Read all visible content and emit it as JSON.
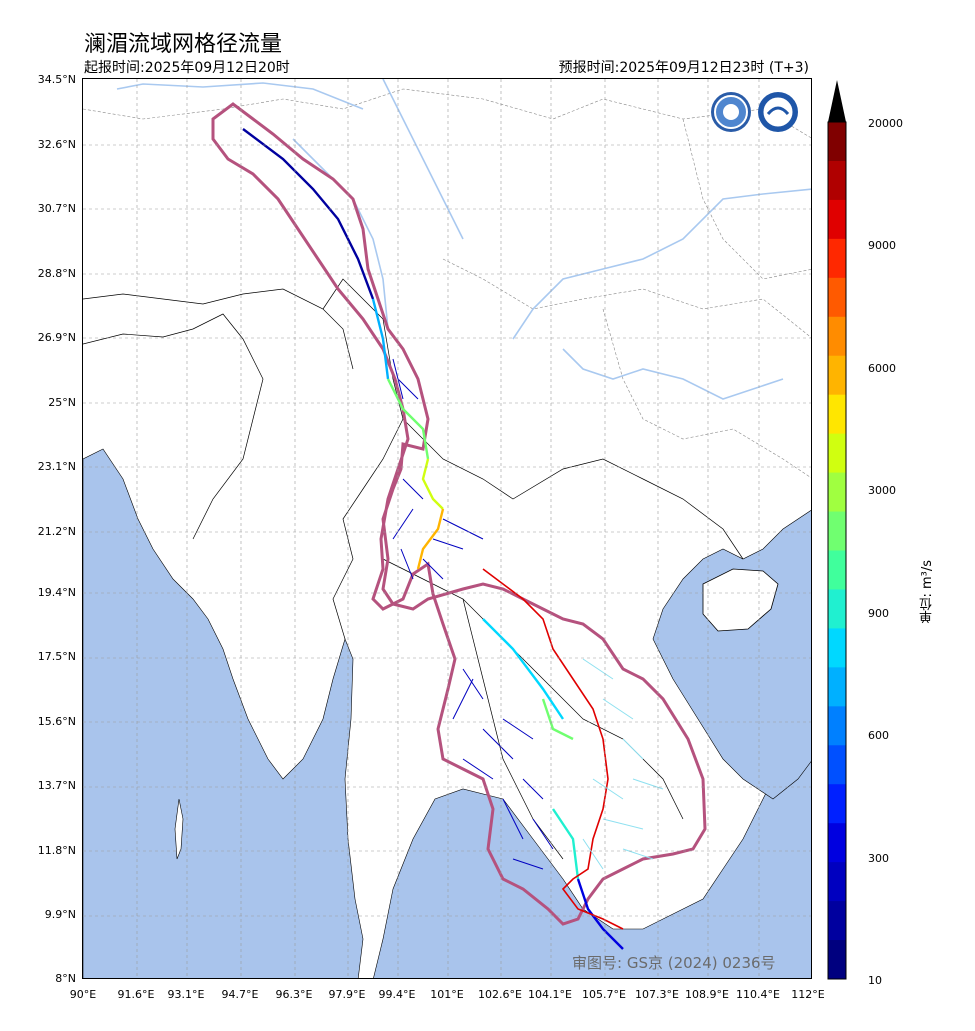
{
  "title": "澜湄流域网格径流量",
  "issue_time": "起报时间:2025年09月12日20时",
  "valid_time": "预报时间:2025年09月12日23时 (T+3)",
  "approval_no": "审图号: GS京 (2024) 0236号",
  "map": {
    "lat_labels": [
      "34.5°N",
      "32.6°N",
      "30.7°N",
      "28.8°N",
      "26.9°N",
      "25°N",
      "23.1°N",
      "21.2°N",
      "19.4°N",
      "17.5°N",
      "15.6°N",
      "13.7°N",
      "11.8°N",
      "9.9°N",
      "8°N"
    ],
    "lon_labels": [
      "90°E",
      "91.6°E",
      "93.1°E",
      "94.7°E",
      "96.3°E",
      "97.9°E",
      "99.4°E",
      "101°E",
      "102.6°E",
      "104.1°E",
      "105.7°E",
      "107.3°E",
      "108.9°E",
      "110.4°E",
      "112°E"
    ],
    "colors": {
      "ocean": "#a9c4ec",
      "basin_outline": "#b5527e",
      "country_line": "#000000",
      "river_line": "#a9c9f0",
      "boundary_red": "#e00000"
    },
    "logos": [
      "wmo-logo-icon",
      "cma-logo-icon"
    ]
  },
  "colorbar": {
    "unit_label": "单位: m³/s",
    "tick_labels": [
      "20000",
      "9000",
      "6000",
      "3000",
      "900",
      "600",
      "300",
      "10"
    ],
    "colors": [
      "#00007f",
      "#00009f",
      "#0000c0",
      "#0000e0",
      "#0020ff",
      "#0050ff",
      "#0080ff",
      "#00b0ff",
      "#00d8ff",
      "#20f0d0",
      "#40ff9c",
      "#70ff70",
      "#a0ff40",
      "#d0ff10",
      "#ffe600",
      "#ffb400",
      "#ff8c00",
      "#ff5a00",
      "#ff2800",
      "#e00000",
      "#b00000",
      "#800000"
    ]
  }
}
